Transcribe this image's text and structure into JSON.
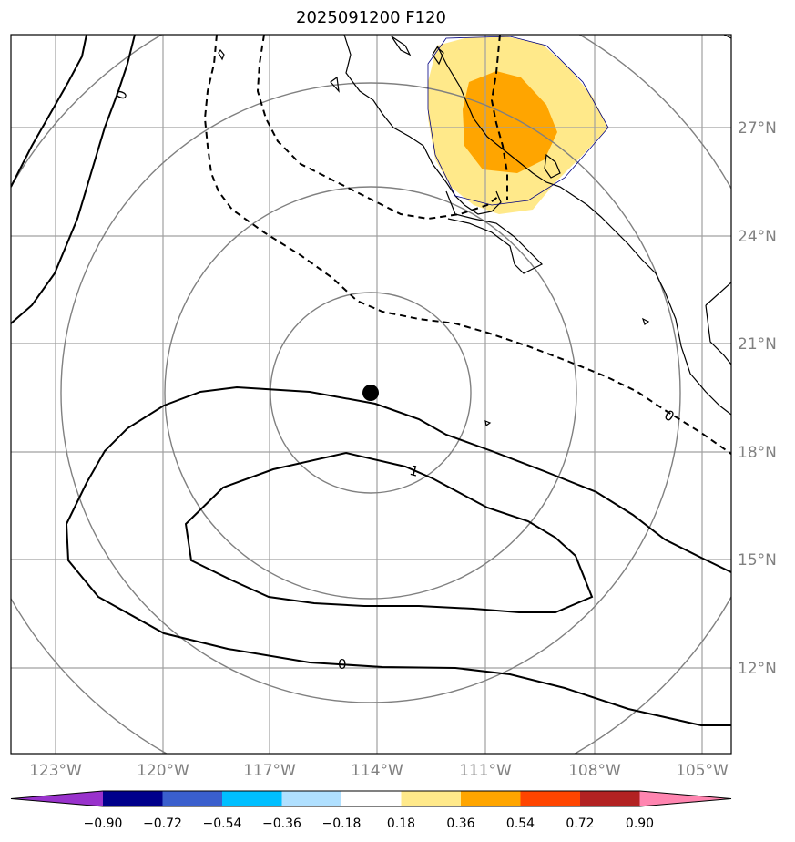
{
  "title": "2025091200 F120",
  "map": {
    "lon_ticks": [
      "123°W",
      "120°W",
      "117°W",
      "114°W",
      "111°W",
      "108°W",
      "105°W"
    ],
    "lat_ticks": [
      "27°N",
      "24°N",
      "21°N",
      "18°N",
      "15°N",
      "12°N"
    ],
    "contour_labels": [
      "0",
      "0",
      "1",
      "0"
    ],
    "center_marker": "storm-center"
  },
  "colorbar": {
    "colors": [
      "#9932cc",
      "#00008b",
      "#3a5fcd",
      "#00bfff",
      "#b0e0ff",
      "#ffffff",
      "#ffe98a",
      "#ffa500",
      "#ff4500",
      "#b22222",
      "#ff85b0"
    ],
    "labels": [
      "−0.90",
      "−0.72",
      "−0.54",
      "−0.36",
      "−0.18",
      "0.18",
      "0.36",
      "0.54",
      "0.72",
      "0.90"
    ]
  }
}
